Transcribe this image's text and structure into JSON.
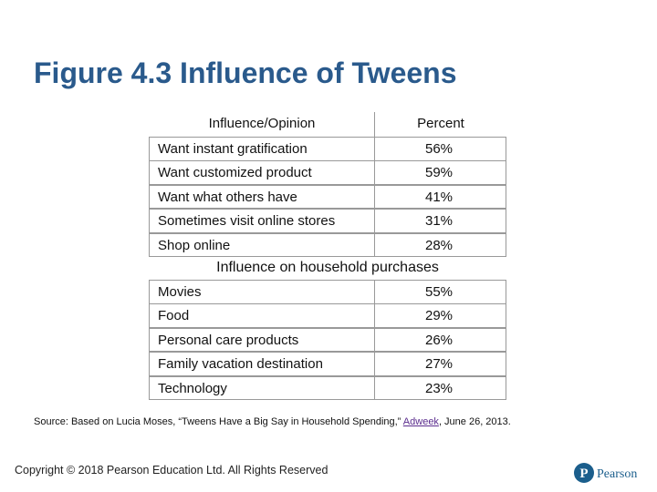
{
  "title": "Figure 4.3 Influence of Tweens",
  "table": {
    "header": [
      "Influence/Opinion",
      "Percent"
    ],
    "sections": [
      {
        "rows": [
          [
            "Want instant gratification",
            "56%"
          ],
          [
            "Want customized product",
            "59%"
          ],
          [
            "Want what others have",
            "41%"
          ],
          [
            "Sometimes visit online stores",
            "31%"
          ],
          [
            "Shop online",
            "28%"
          ]
        ]
      },
      {
        "heading": "Influence on household purchases",
        "rows": [
          [
            "Movies",
            "55%"
          ],
          [
            "Food",
            "29%"
          ],
          [
            "Personal care products",
            "26%"
          ],
          [
            "Family vacation destination",
            "27%"
          ],
          [
            "Technology",
            "23%"
          ]
        ]
      }
    ]
  },
  "source": {
    "text": "Source: Based on Lucia Moses, “Tweens Have a Big Say in Household Spending,”",
    "link": "Adweek",
    "suffix": ", June 26, 2013."
  },
  "footer": {
    "copyright": "Copyright © 2018 Pearson Education Ltd. All Rights Reserved",
    "logo": "Pearson"
  }
}
